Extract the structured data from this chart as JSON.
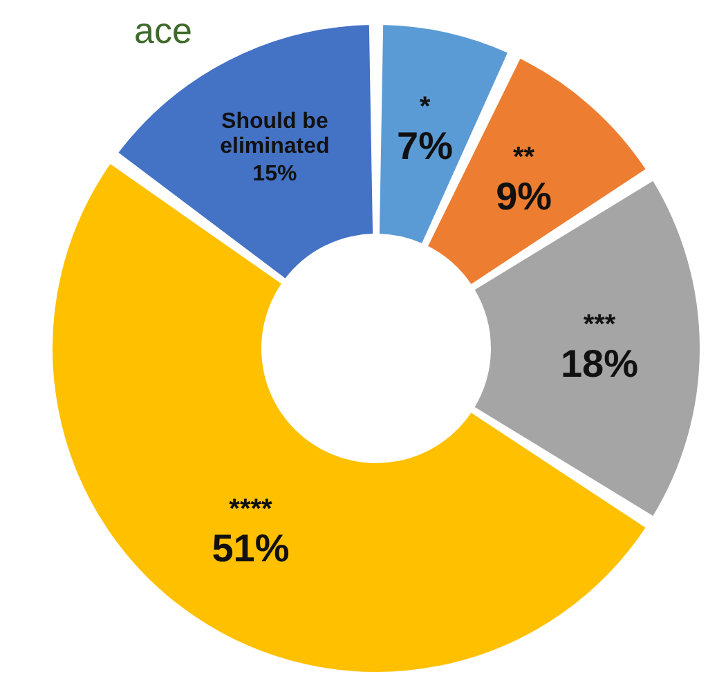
{
  "chart_data": {
    "type": "donut",
    "title": "ace",
    "categories": [
      "*",
      "**",
      "***",
      "****",
      "Should be eliminated"
    ],
    "values": [
      7,
      9,
      18,
      51,
      15
    ],
    "colors": [
      "#5b9bd5",
      "#ed7d31",
      "#a5a5a5",
      "#ffc000",
      "#4472c4"
    ],
    "value_labels": [
      "7%",
      "9%",
      "18%",
      "51%",
      "15%"
    ],
    "legend": false
  }
}
